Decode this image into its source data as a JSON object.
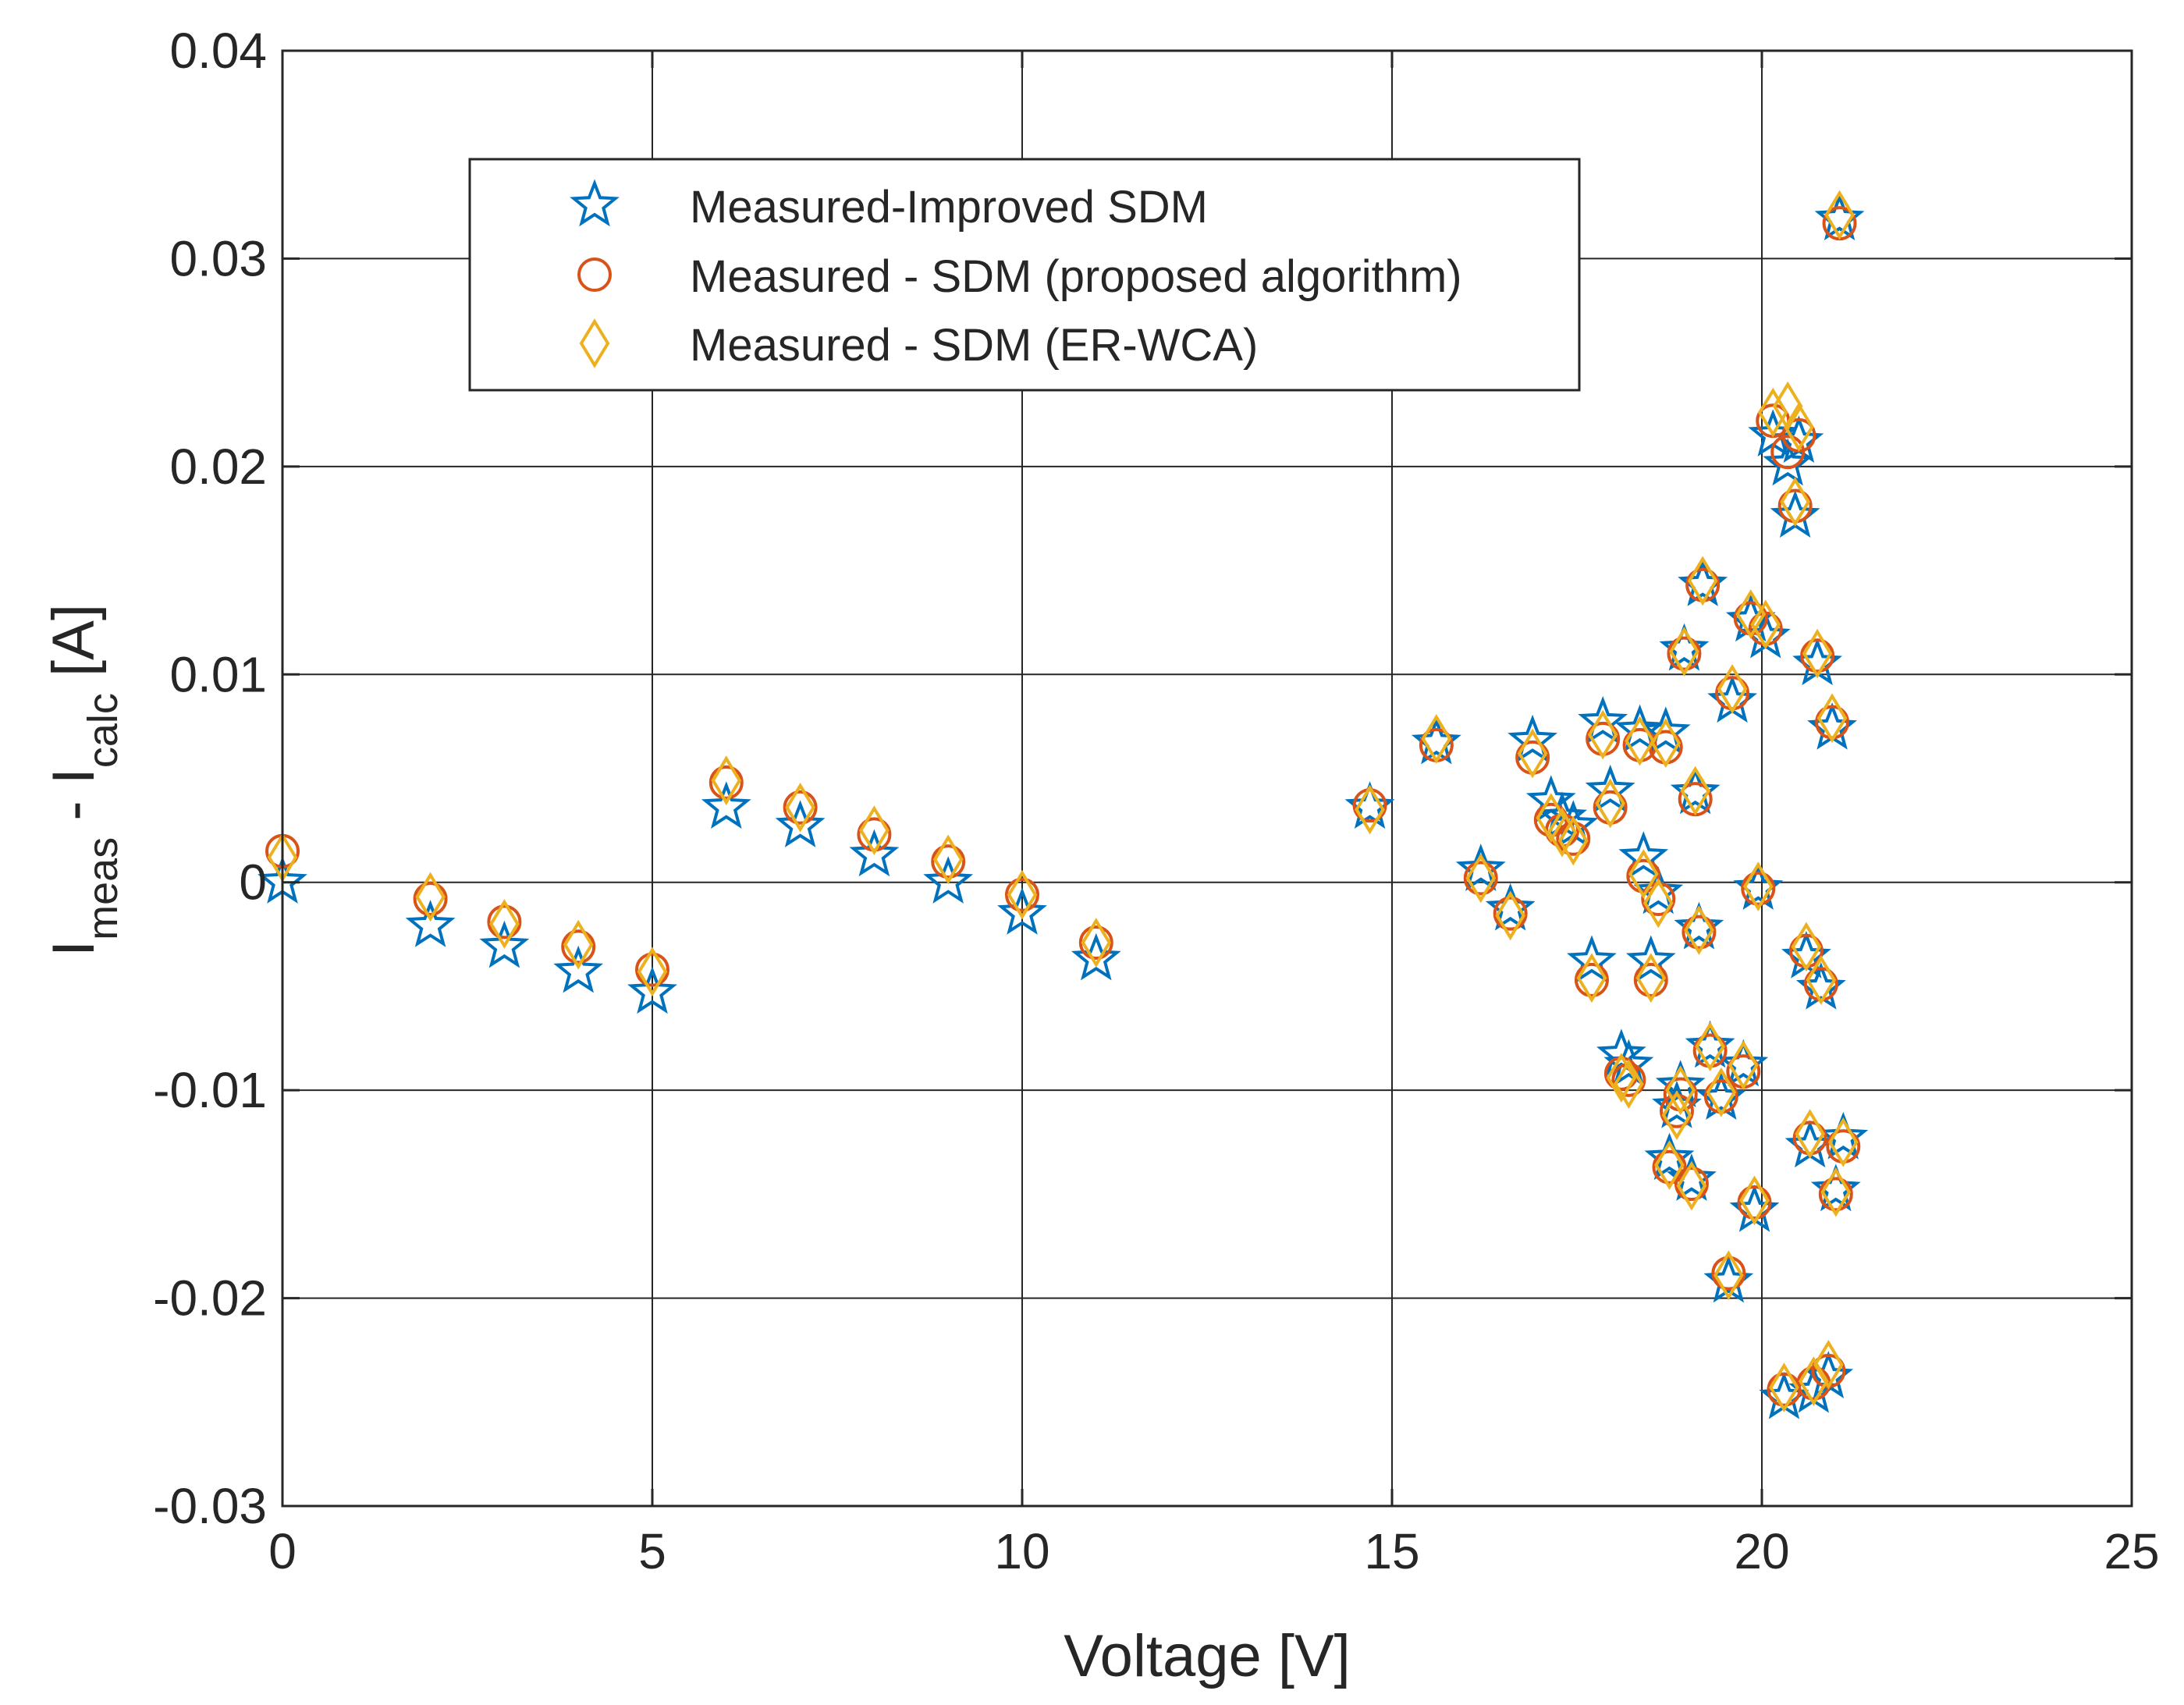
{
  "chart_data": {
    "type": "scatter",
    "title": "",
    "xlabel": "Voltage [V]",
    "ylabel": {
      "base1": "I",
      "sub1": "meas",
      "mid": " - I",
      "sub2": "calc",
      "tail": " [A]"
    },
    "xlim": [
      0,
      25
    ],
    "ylim": [
      -0.03,
      0.04
    ],
    "xticks": [
      0,
      5,
      10,
      15,
      20,
      25
    ],
    "xtick_labels": [
      "0",
      "5",
      "10",
      "15",
      "20",
      "25"
    ],
    "yticks": [
      -0.03,
      -0.02,
      -0.01,
      0,
      0.01,
      0.02,
      0.03,
      0.04
    ],
    "ytick_labels": [
      "-0.03",
      "-0.02",
      "-0.01",
      "0",
      "0.01",
      "0.02",
      "0.03",
      "0.04"
    ],
    "grid": true,
    "legend_position": "top-left-center",
    "colors": {
      "improved": "#0072BD",
      "proposed": "#D95319",
      "erwca": "#EDB120",
      "axis": "#262626",
      "grid": "#262626"
    },
    "series": [
      {
        "name": "Measured-Improved SDM",
        "marker": "star-icon",
        "points": [
          [
            0,
            0
          ],
          [
            2,
            -0.0021
          ],
          [
            3,
            -0.0031
          ],
          [
            4,
            -0.0043
          ],
          [
            5,
            -0.0053
          ],
          [
            6,
            0.0036
          ],
          [
            7,
            0.0027
          ],
          [
            8,
            0.0013
          ],
          [
            9,
            0
          ],
          [
            10,
            -0.0015
          ],
          [
            11,
            -0.0037
          ],
          [
            14.7,
            0.0036
          ],
          [
            15.6,
            0.0067
          ],
          [
            16.2,
            0.0006
          ],
          [
            16.6,
            -0.0013
          ],
          [
            16.9,
            0.0068
          ],
          [
            17.15,
            0.0039
          ],
          [
            17.3,
            0.0031
          ],
          [
            17.45,
            0.0027
          ],
          [
            17.7,
            -0.0038
          ],
          [
            17.85,
            0.0077
          ],
          [
            17.95,
            0.0044
          ],
          [
            18.1,
            -0.0083
          ],
          [
            18.2,
            -0.0088
          ],
          [
            18.35,
            0.0073
          ],
          [
            18.4,
            0.0012
          ],
          [
            18.5,
            -0.0038
          ],
          [
            18.6,
            -0.0005
          ],
          [
            18.7,
            0.0072
          ],
          [
            18.75,
            -0.0133
          ],
          [
            18.85,
            -0.0108
          ],
          [
            18.9,
            -0.0098
          ],
          [
            18.95,
            0.0112
          ],
          [
            19.05,
            -0.0143
          ],
          [
            19.1,
            0.0043
          ],
          [
            19.15,
            -0.0022
          ],
          [
            19.2,
            0.0143
          ],
          [
            19.3,
            -0.0079
          ],
          [
            19.45,
            -0.0104
          ],
          [
            19.55,
            -0.0192
          ],
          [
            19.6,
            0.0087
          ],
          [
            19.75,
            -0.0088
          ],
          [
            19.85,
            0.0126
          ],
          [
            19.9,
            -0.0158
          ],
          [
            19.95,
            -0.0003
          ],
          [
            20.05,
            0.0118
          ],
          [
            20.15,
            0.0215
          ],
          [
            20.3,
            -0.0248
          ],
          [
            20.35,
            0.0201
          ],
          [
            20.45,
            0.0176
          ],
          [
            20.5,
            0.0212
          ],
          [
            20.6,
            -0.0036
          ],
          [
            20.65,
            -0.0127
          ],
          [
            20.7,
            -0.0245
          ],
          [
            20.75,
            0.0105
          ],
          [
            20.8,
            -0.0051
          ],
          [
            20.9,
            -0.0238
          ],
          [
            20.95,
            0.0074
          ],
          [
            21.0,
            -0.0148
          ],
          [
            21.05,
            0.0319
          ],
          [
            21.1,
            -0.0123
          ]
        ]
      },
      {
        "name": "Measured - SDM (proposed algorithm)",
        "marker": "circle-icon",
        "points": [
          [
            0,
            0.0015
          ],
          [
            2,
            -0.0008
          ],
          [
            3,
            -0.0019
          ],
          [
            4,
            -0.0031
          ],
          [
            5,
            -0.0042
          ],
          [
            6,
            0.0048
          ],
          [
            7,
            0.0036
          ],
          [
            8,
            0.0023
          ],
          [
            9,
            0.001
          ],
          [
            10,
            -0.0006
          ],
          [
            11,
            -0.0029
          ],
          [
            14.7,
            0.0037
          ],
          [
            15.6,
            0.0066
          ],
          [
            16.2,
            0.0002
          ],
          [
            16.6,
            -0.0015
          ],
          [
            16.9,
            0.006
          ],
          [
            17.15,
            0.003
          ],
          [
            17.3,
            0.0025
          ],
          [
            17.45,
            0.0021
          ],
          [
            17.7,
            -0.0047
          ],
          [
            17.85,
            0.0069
          ],
          [
            17.95,
            0.0036
          ],
          [
            18.1,
            -0.0092
          ],
          [
            18.2,
            -0.0095
          ],
          [
            18.35,
            0.0066
          ],
          [
            18.4,
            0.0003
          ],
          [
            18.5,
            -0.0047
          ],
          [
            18.6,
            -0.0008
          ],
          [
            18.7,
            0.0065
          ],
          [
            18.75,
            -0.0137
          ],
          [
            18.85,
            -0.011
          ],
          [
            18.9,
            -0.0102
          ],
          [
            18.95,
            0.011
          ],
          [
            19.05,
            -0.0145
          ],
          [
            19.1,
            0.004
          ],
          [
            19.15,
            -0.0024
          ],
          [
            19.2,
            0.0143
          ],
          [
            19.3,
            -0.0081
          ],
          [
            19.45,
            -0.0103
          ],
          [
            19.55,
            -0.0188
          ],
          [
            19.6,
            0.0091
          ],
          [
            19.75,
            -0.0091
          ],
          [
            19.85,
            0.0127
          ],
          [
            19.9,
            -0.0154
          ],
          [
            19.95,
            -0.0003
          ],
          [
            20.05,
            0.0122
          ],
          [
            20.15,
            0.0222
          ],
          [
            20.3,
            -0.0244
          ],
          [
            20.35,
            0.0207
          ],
          [
            20.45,
            0.0181
          ],
          [
            20.5,
            0.0215
          ],
          [
            20.6,
            -0.0033
          ],
          [
            20.65,
            -0.0123
          ],
          [
            20.7,
            -0.0241
          ],
          [
            20.75,
            0.0109
          ],
          [
            20.8,
            -0.0049
          ],
          [
            20.9,
            -0.0235
          ],
          [
            20.95,
            0.0077
          ],
          [
            21.0,
            -0.015
          ],
          [
            21.05,
            0.0317
          ],
          [
            21.1,
            -0.0127
          ]
        ]
      },
      {
        "name": "Measured - SDM (ER-WCA)",
        "marker": "diamond-icon",
        "points": [
          [
            0,
            0.0012
          ],
          [
            2,
            -0.0007
          ],
          [
            3,
            -0.002
          ],
          [
            4,
            -0.003
          ],
          [
            5,
            -0.0043
          ],
          [
            6,
            0.0049
          ],
          [
            7,
            0.0036
          ],
          [
            8,
            0.0025
          ],
          [
            9,
            0.0011
          ],
          [
            10,
            -0.0006
          ],
          [
            11,
            -0.0029
          ],
          [
            14.7,
            0.0035
          ],
          [
            15.6,
            0.0069
          ],
          [
            16.2,
            0.0002
          ],
          [
            16.6,
            -0.0016
          ],
          [
            16.9,
            0.0062
          ],
          [
            17.15,
            0.0031
          ],
          [
            17.3,
            0.0024
          ],
          [
            17.45,
            0.002
          ],
          [
            17.7,
            -0.0046
          ],
          [
            17.85,
            0.0071
          ],
          [
            17.95,
            0.0038
          ],
          [
            18.1,
            -0.0094
          ],
          [
            18.2,
            -0.0097
          ],
          [
            18.35,
            0.0068
          ],
          [
            18.4,
            0.0004
          ],
          [
            18.5,
            -0.0046
          ],
          [
            18.6,
            -0.001
          ],
          [
            18.7,
            0.0067
          ],
          [
            18.75,
            -0.0136
          ],
          [
            18.85,
            -0.0112
          ],
          [
            18.9,
            -0.01
          ],
          [
            18.95,
            0.0111
          ],
          [
            19.05,
            -0.0146
          ],
          [
            19.1,
            0.0044
          ],
          [
            19.15,
            -0.0023
          ],
          [
            19.2,
            0.0145
          ],
          [
            19.3,
            -0.0079
          ],
          [
            19.45,
            -0.0101
          ],
          [
            19.55,
            -0.0189
          ],
          [
            19.6,
            0.0093
          ],
          [
            19.75,
            -0.0088
          ],
          [
            19.85,
            0.0129
          ],
          [
            19.9,
            -0.0153
          ],
          [
            19.95,
            -0.0002
          ],
          [
            20.05,
            0.0124
          ],
          [
            20.15,
            0.0226
          ],
          [
            20.3,
            -0.0243
          ],
          [
            20.35,
            0.0229
          ],
          [
            20.45,
            0.0183
          ],
          [
            20.5,
            0.0219
          ],
          [
            20.6,
            -0.0031
          ],
          [
            20.65,
            -0.0121
          ],
          [
            20.7,
            -0.024
          ],
          [
            20.75,
            0.011
          ],
          [
            20.8,
            -0.0047
          ],
          [
            20.9,
            -0.0232
          ],
          [
            20.95,
            0.0079
          ],
          [
            21.0,
            -0.0149
          ],
          [
            21.05,
            0.0321
          ],
          [
            21.1,
            -0.0125
          ]
        ]
      }
    ]
  }
}
